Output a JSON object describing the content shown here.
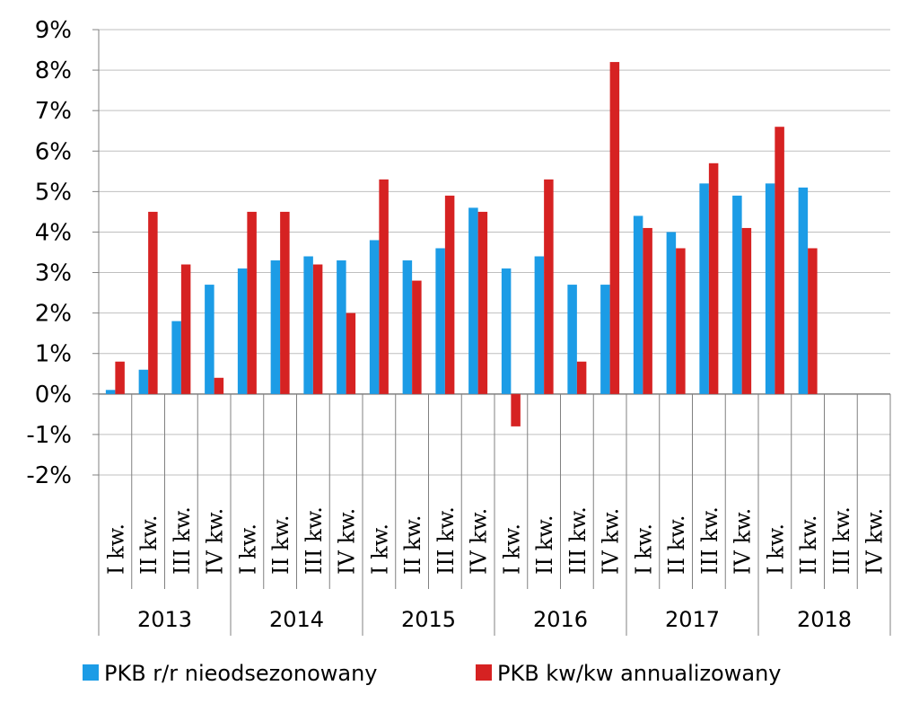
{
  "chart_data": {
    "type": "bar",
    "title": "",
    "xlabel": "",
    "ylabel": "",
    "ylim": [
      -2,
      9
    ],
    "yticks": [
      -2,
      -1,
      0,
      1,
      2,
      3,
      4,
      5,
      6,
      7,
      8,
      9
    ],
    "ytick_labels": [
      "-2%",
      "-1%",
      "0%",
      "1%",
      "2%",
      "3%",
      "4%",
      "5%",
      "6%",
      "7%",
      "8%",
      "9%"
    ],
    "grid": true,
    "legend_position": "bottom",
    "quarter_labels": [
      "I kw.",
      "II kw.",
      "III kw.",
      "IV kw."
    ],
    "years": [
      "2013",
      "2014",
      "2015",
      "2016",
      "2017",
      "2018"
    ],
    "series": [
      {
        "name": "PKB r/r nieodsezonowany",
        "color": "#1c9ce6",
        "values": [
          0.1,
          0.6,
          1.8,
          2.7,
          3.1,
          3.3,
          3.4,
          3.3,
          3.8,
          3.3,
          3.6,
          4.6,
          3.1,
          3.4,
          2.7,
          2.7,
          4.4,
          4.0,
          5.2,
          4.9,
          5.2,
          5.1,
          null,
          null
        ]
      },
      {
        "name": "PKB kw/kw annualizowany",
        "color": "#d62222",
        "values": [
          0.8,
          4.5,
          3.2,
          0.4,
          4.5,
          4.5,
          3.2,
          2.0,
          5.3,
          2.8,
          4.9,
          4.5,
          -0.8,
          5.3,
          0.8,
          8.2,
          4.1,
          3.6,
          5.7,
          4.1,
          6.6,
          3.6,
          null,
          null
        ]
      }
    ]
  }
}
